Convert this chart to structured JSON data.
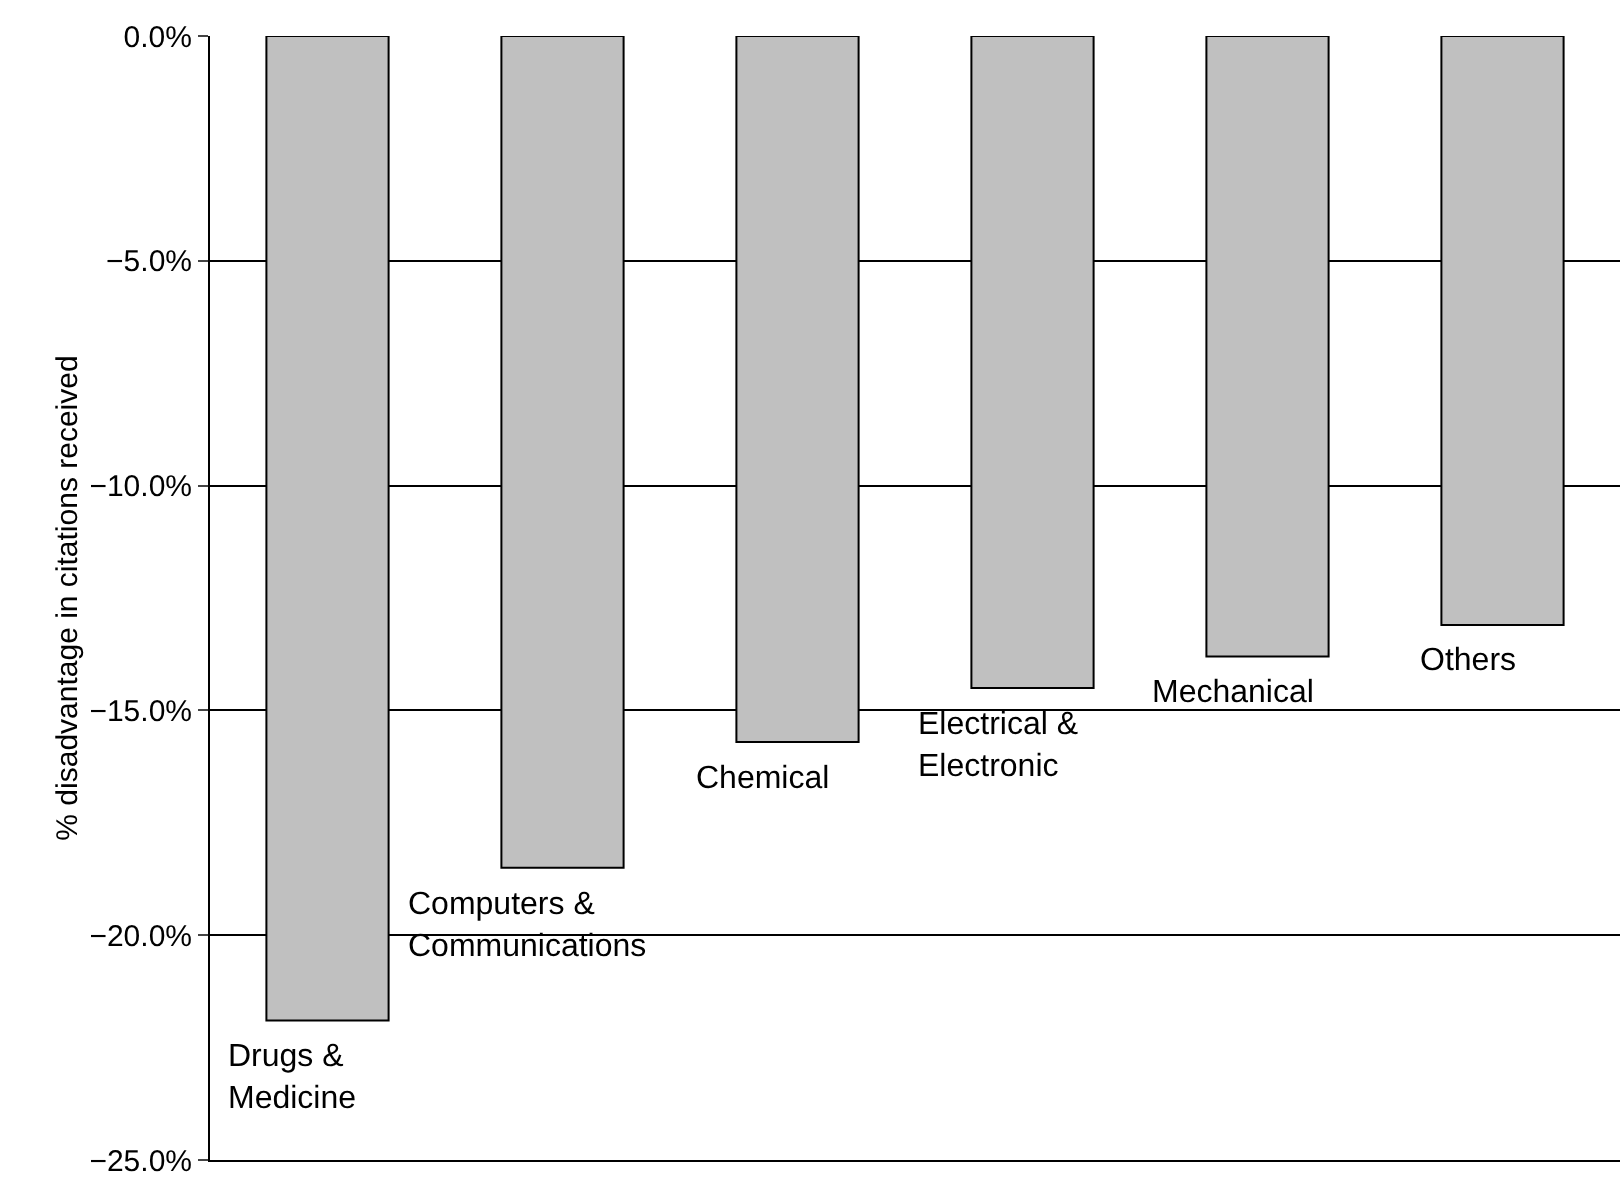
{
  "chart_data": {
    "type": "bar",
    "ylabel": "% disadvantage in citations received",
    "categories": [
      "Drugs &\nMedicine",
      "Computers &\nCommunications",
      "Chemical",
      "Electrical &\nElectronic",
      "Mechanical",
      "Others"
    ],
    "values": [
      -21.9,
      -18.5,
      -15.7,
      -14.5,
      -13.8,
      -13.1
    ],
    "color": "#c0c0c0",
    "ylim": [
      -25,
      0
    ],
    "yticks": [
      {
        "value": 0,
        "label": "0.0%"
      },
      {
        "value": -5,
        "label": "−5.0%"
      },
      {
        "value": -10,
        "label": "−10.0%"
      },
      {
        "value": -15,
        "label": "−15.0%"
      },
      {
        "value": -20,
        "label": "−20.0%"
      },
      {
        "value": -25,
        "label": "−25.0%"
      }
    ],
    "grid": "y",
    "tick_labels": "y"
  }
}
